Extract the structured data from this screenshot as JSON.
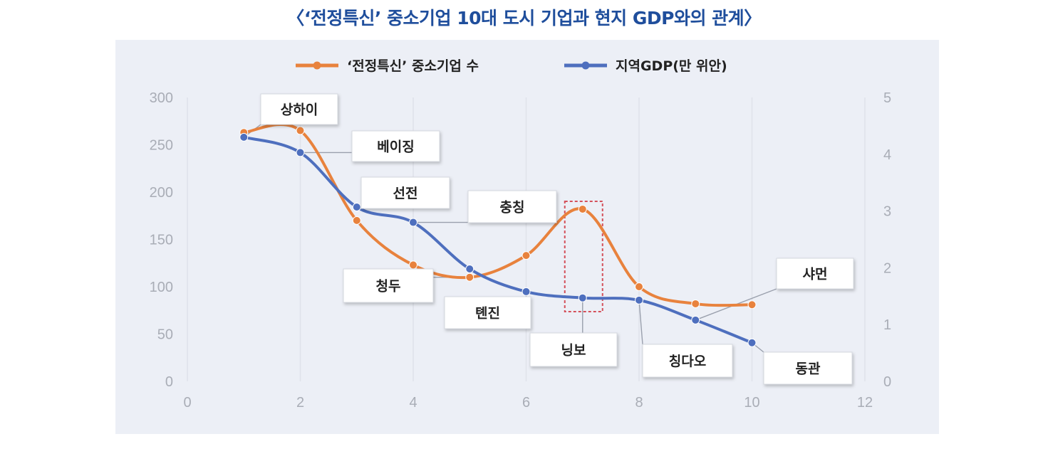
{
  "title": "〈‘전정특신’ 중소기업 10대 도시 기업과 현지 GDP와의 관계〉",
  "chart_data": {
    "type": "line",
    "xlim": [
      0,
      12
    ],
    "x_ticks": [
      0,
      2,
      4,
      6,
      8,
      10,
      12
    ],
    "ylim_left": [
      0,
      300
    ],
    "y_ticks_left": [
      0,
      50,
      100,
      150,
      200,
      250,
      300
    ],
    "ylim_right": [
      0,
      5
    ],
    "y_ticks_right": [
      0,
      1,
      2,
      3,
      4,
      5
    ],
    "grid": "vertical",
    "legend_position": "top",
    "series": [
      {
        "name": "‘전정특신’ 중소기업 수",
        "axis": "left",
        "color": "#e8823d",
        "x": [
          1,
          2,
          3,
          4,
          5,
          6,
          7,
          8,
          9,
          10
        ],
        "y": [
          263,
          265,
          170,
          123,
          110,
          133,
          182,
          100,
          82,
          81
        ]
      },
      {
        "name": "지역GDP(만 위안)",
        "axis": "right",
        "color": "#4e6fbe",
        "x": [
          1,
          2,
          3,
          4,
          5,
          6,
          7,
          8,
          9,
          10
        ],
        "y": [
          4.3,
          4.03,
          3.07,
          2.8,
          1.98,
          1.58,
          1.47,
          1.43,
          1.08,
          0.68
        ]
      }
    ],
    "callouts": [
      {
        "label": "상하이",
        "x": 1
      },
      {
        "label": "베이징",
        "x": 2
      },
      {
        "label": "선전",
        "x": 3
      },
      {
        "label": "충칭",
        "x": 4
      },
      {
        "label": "청두",
        "x": 5
      },
      {
        "label": "톈진",
        "x": 6
      },
      {
        "label": "닝보",
        "x": 7
      },
      {
        "label": "칭다오",
        "x": 8
      },
      {
        "label": "샤먼",
        "x": 9
      },
      {
        "label": "동관",
        "x": 10
      }
    ],
    "highlight": {
      "x": 7,
      "color": "#d4505a"
    }
  }
}
